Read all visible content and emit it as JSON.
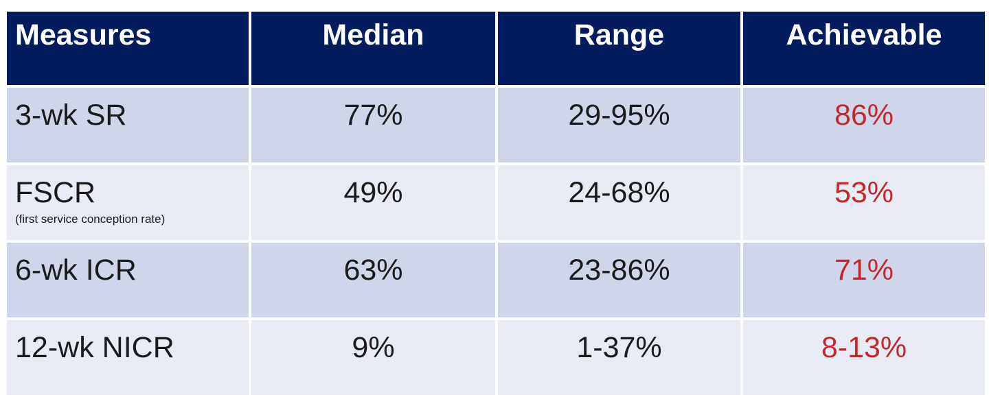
{
  "table": {
    "headers": [
      "Measures",
      "Median",
      "Range",
      "Achievable"
    ],
    "rows": [
      {
        "measure": "3-wk SR",
        "subtitle": "",
        "median": "77%",
        "range": "29-95%",
        "achievable": "86%"
      },
      {
        "measure": "FSCR",
        "subtitle": "(first service conception rate)",
        "median": "49%",
        "range": "24-68%",
        "achievable": "53%"
      },
      {
        "measure": "6-wk ICR",
        "subtitle": "",
        "median": "63%",
        "range": "23-86%",
        "achievable": "71%"
      },
      {
        "measure": "12-wk NICR",
        "subtitle": "",
        "median": "9%",
        "range": "1-37%",
        "achievable": "8-13%"
      }
    ]
  },
  "colors": {
    "header_bg": "#021c5e",
    "header_text": "#ffffff",
    "row_dark": "#d0d6ea",
    "row_light": "#e8ebf4",
    "achievable_text": "#c02a2e"
  }
}
